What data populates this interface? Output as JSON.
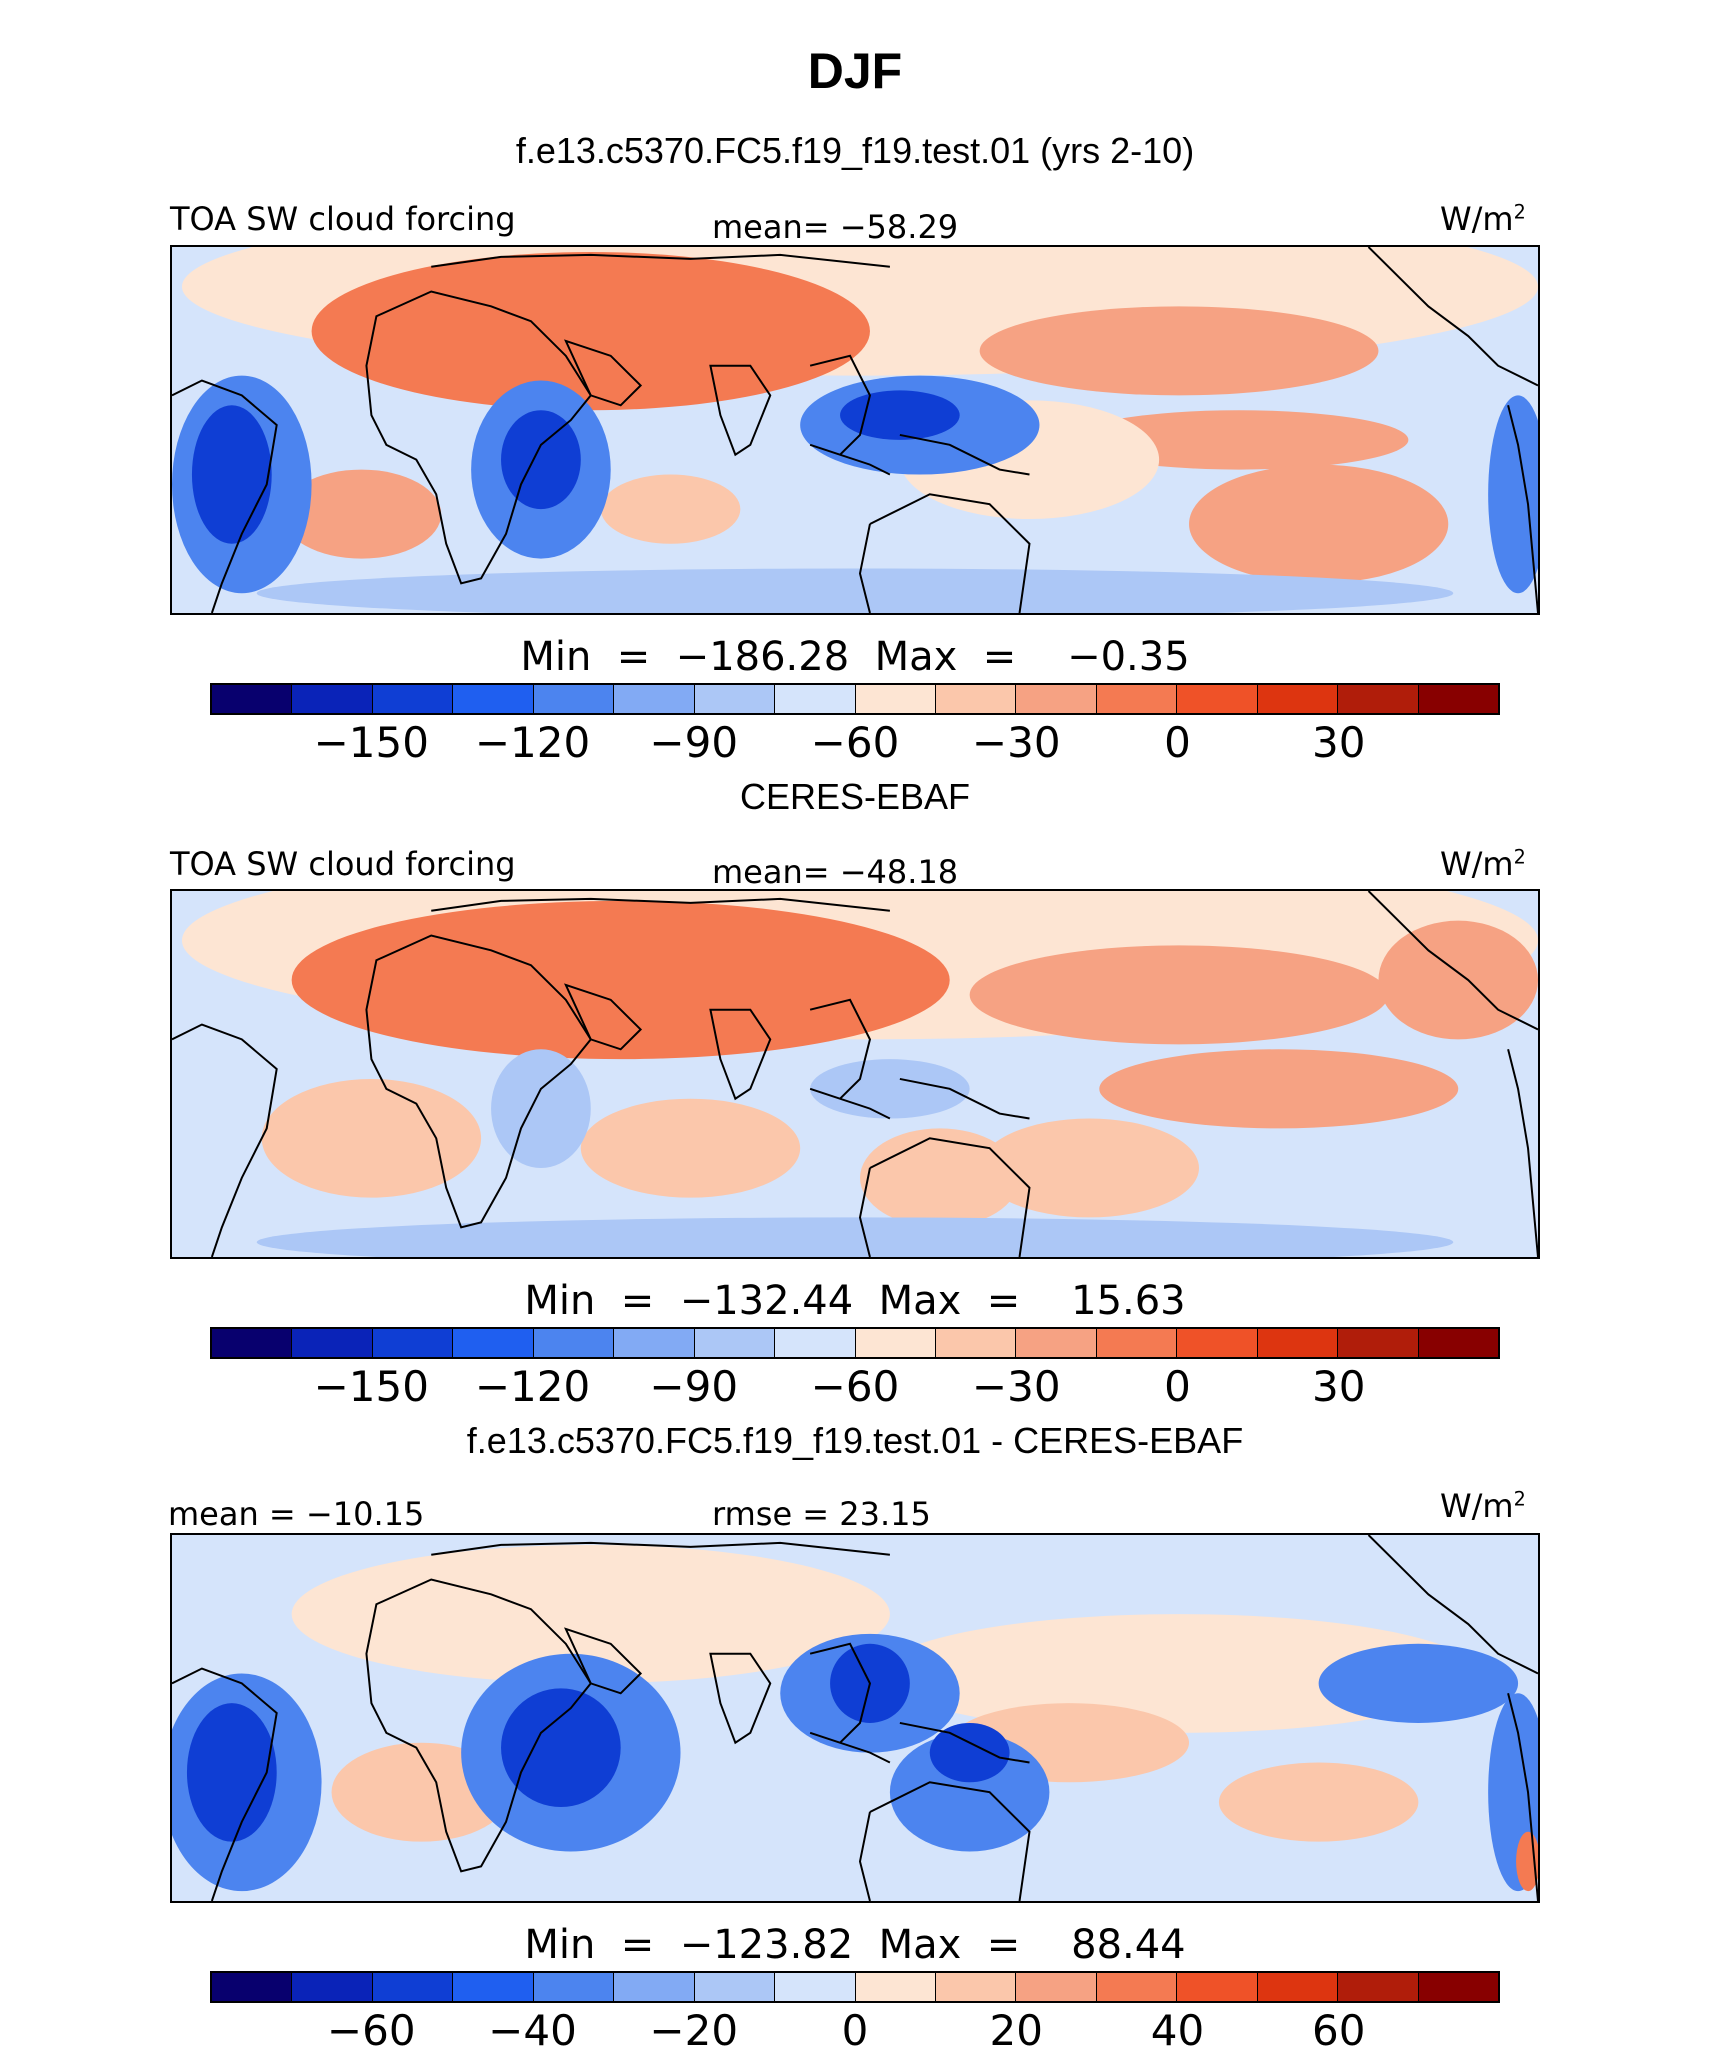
{
  "figure_title": "DJF",
  "panels": [
    {
      "title": "f.e13.c5370.FC5.f19_f19.test.01 (yrs 2-10)",
      "left_label": "TOA SW cloud forcing",
      "center_label": "mean= −58.29",
      "unit_base": "W/m",
      "unit_exp": "2",
      "minmax": "Min  =  −186.28  Max  =    −0.35",
      "colorbar_ticks": [
        "−150",
        "−120",
        "−90",
        "−60",
        "−30",
        "0",
        "30"
      ],
      "field": "model"
    },
    {
      "title": "CERES-EBAF",
      "left_label": "TOA SW cloud forcing",
      "center_label": "mean= −48.18",
      "unit_base": "W/m",
      "unit_exp": "2",
      "minmax": "Min  =  −132.44  Max  =    15.63",
      "colorbar_ticks": [
        "−150",
        "−120",
        "−90",
        "−60",
        "−30",
        "0",
        "30"
      ],
      "field": "obs"
    },
    {
      "title": "f.e13.c5370.FC5.f19_f19.test.01 - CERES-EBAF",
      "left_label": "mean = −10.15",
      "center_label": "rmse =   23.15",
      "unit_base": "W/m",
      "unit_exp": "2",
      "minmax": "Min  =  −123.82  Max  =    88.44",
      "colorbar_ticks": [
        "−60",
        "−40",
        "−20",
        "0",
        "20",
        "40",
        "60"
      ],
      "field": "diff"
    }
  ],
  "colorbar_colors": [
    "#08006e",
    "#0a23b8",
    "#0f3ed4",
    "#1f5ff0",
    "#4c84ef",
    "#82aaf4",
    "#acc7f6",
    "#d5e4fb",
    "#fde5d3",
    "#fbc7ab",
    "#f6a283",
    "#f47a52",
    "#ef5228",
    "#dd3510",
    "#b01d0a",
    "#880000"
  ],
  "map_palette": {
    "land_outline": "#000000",
    "deep_blue": "#0f3ed4",
    "mid_blue": "#4c84ef",
    "light_blue": "#acc7f6",
    "pale_blue": "#d5e4fb",
    "pale_orange": "#fde5d3",
    "light_orange": "#fbc7ab",
    "mid_orange": "#f6a283",
    "strong_orange": "#f47a52"
  }
}
